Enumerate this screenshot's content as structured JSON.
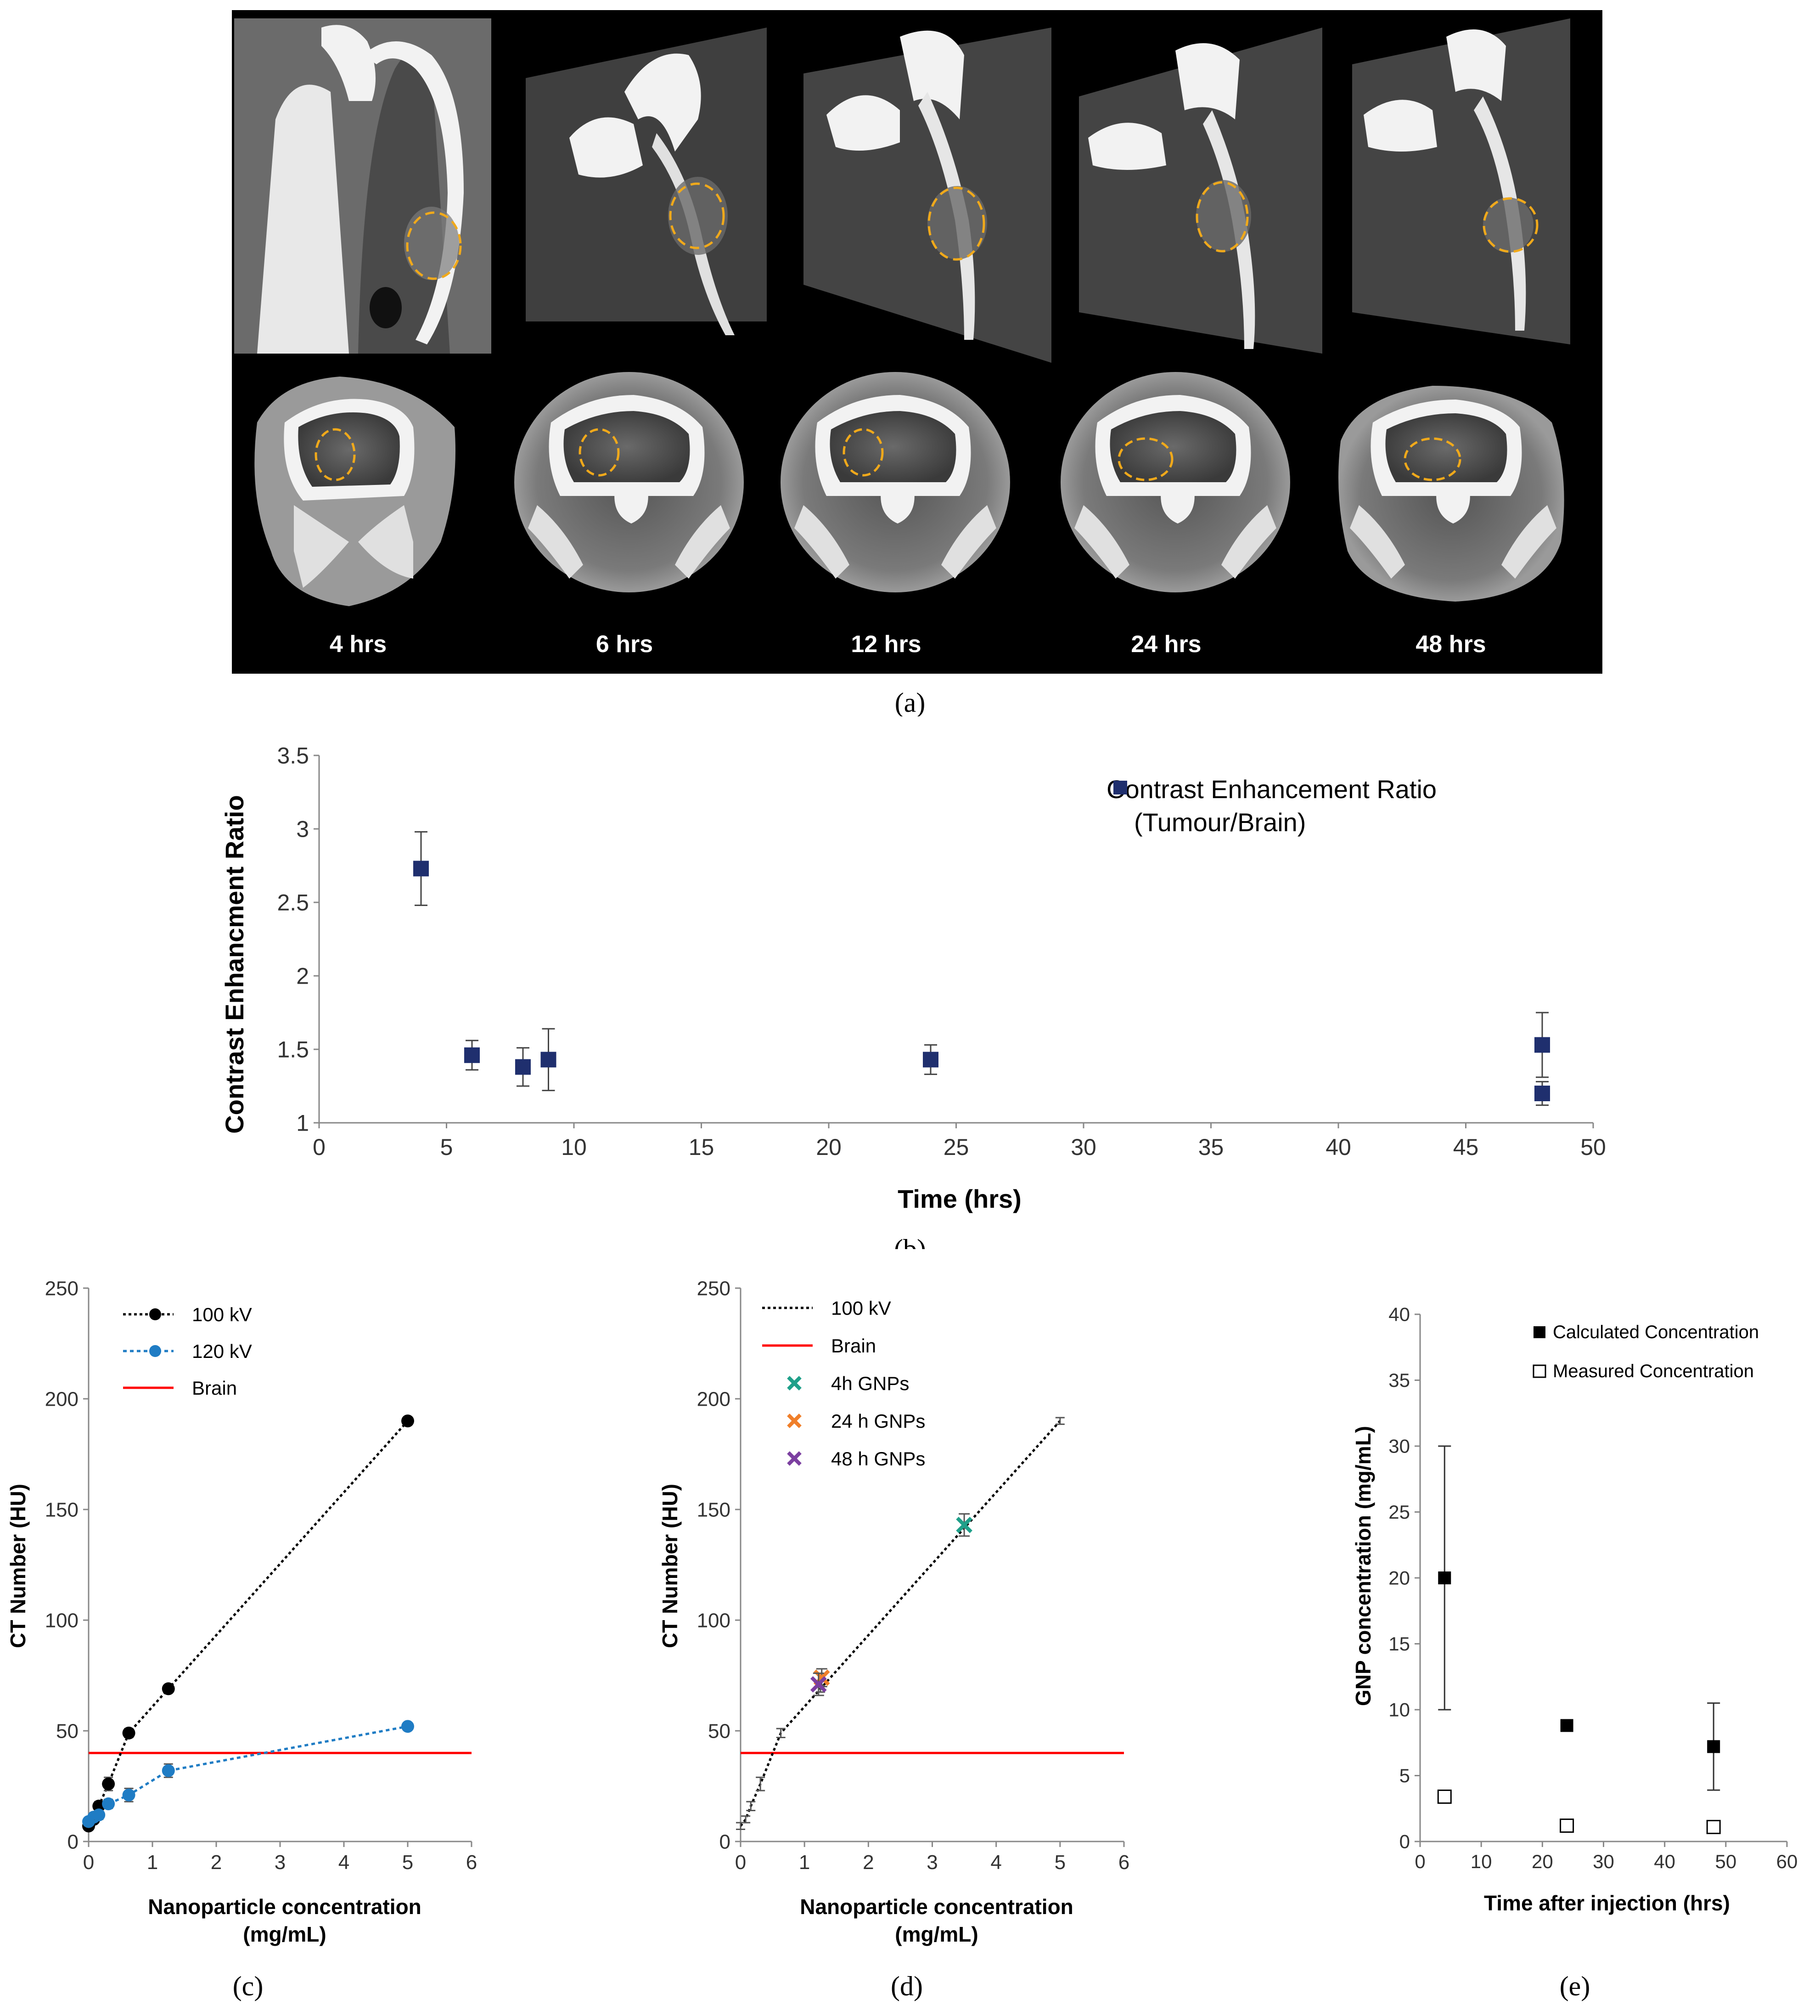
{
  "panel_a": {
    "caption": "(a)",
    "time_labels": [
      "4 hrs",
      "6 hrs",
      "12 hrs",
      "24 hrs",
      "48 hrs"
    ]
  },
  "colors": {
    "navy": "#1f2f6e",
    "red": "#ff0000",
    "blue": "#1f7cc4",
    "teal": "#1fa08a",
    "orange": "#f07f2a",
    "purple": "#7b3fa0",
    "roi": "#f0a91b"
  },
  "chart_data": [
    {
      "id": "b",
      "caption": "(b)",
      "type": "scatter",
      "xlabel": "Time (hrs)",
      "ylabel": "Contrast Enhancment Ratio",
      "xlim": [
        0,
        50
      ],
      "ylim": [
        1,
        3.5
      ],
      "xticks": [
        0,
        5,
        10,
        15,
        20,
        25,
        30,
        35,
        40,
        45,
        50
      ],
      "yticks": [
        1,
        1.5,
        2,
        2.5,
        3,
        3.5
      ],
      "legend": [
        "Contrast Enhancement Ratio",
        "(Tumour/Brain)"
      ],
      "legend_position": "top-right",
      "series": [
        {
          "name": "Contrast Enhancement Ratio (Tumour/Brain)",
          "x": [
            4,
            6,
            8,
            9,
            24,
            48,
            48
          ],
          "y": [
            2.73,
            1.46,
            1.38,
            1.43,
            1.43,
            1.53,
            1.2
          ],
          "err": [
            0.25,
            0.1,
            0.13,
            0.21,
            0.1,
            0.22,
            0.08
          ]
        }
      ]
    },
    {
      "id": "c",
      "caption": "(c)",
      "type": "line",
      "xlabel": [
        "Nanoparticle concentration",
        "(mg/mL)"
      ],
      "ylabel": "CT Number (HU)",
      "xlim": [
        0,
        6
      ],
      "ylim": [
        0,
        250
      ],
      "xticks": [
        0,
        1,
        2,
        3,
        4,
        5,
        6
      ],
      "yticks": [
        0,
        50,
        100,
        150,
        200,
        250
      ],
      "legend_position": "top-left",
      "series": [
        {
          "name": "100 kV",
          "x": [
            0,
            0.08,
            0.16,
            0.31,
            0.63,
            1.25,
            5
          ],
          "y": [
            7,
            10,
            16,
            26,
            49,
            69,
            190
          ],
          "err": [
            1.5,
            1.5,
            2,
            3,
            2,
            1.5,
            1.5
          ]
        },
        {
          "name": "120 kV",
          "x": [
            0,
            0.08,
            0.16,
            0.31,
            0.63,
            1.25,
            5
          ],
          "y": [
            9,
            11,
            12,
            17,
            21,
            32,
            52
          ],
          "err": [
            1.5,
            1.5,
            2,
            2,
            3,
            3,
            1.5
          ]
        }
      ],
      "reference_lines": [
        {
          "name": "Brain",
          "y": 40
        }
      ]
    },
    {
      "id": "d",
      "caption": "(d)",
      "type": "line",
      "xlabel": [
        "Nanoparticle concentration",
        "(mg/mL)"
      ],
      "ylabel": "CT Number (HU)",
      "xlim": [
        0,
        6
      ],
      "ylim": [
        0,
        250
      ],
      "xticks": [
        0,
        1,
        2,
        3,
        4,
        5,
        6
      ],
      "yticks": [
        0,
        50,
        100,
        150,
        200,
        250
      ],
      "legend_position": "top-left",
      "series": [
        {
          "name": "100 kV",
          "x": [
            0,
            0.08,
            0.16,
            0.31,
            0.63,
            1.25,
            5
          ],
          "y": [
            7,
            10,
            16,
            26,
            49,
            69,
            190
          ],
          "err": [
            1.5,
            1.5,
            2,
            3,
            2,
            1.5,
            1.5
          ]
        }
      ],
      "reference_lines": [
        {
          "name": "Brain",
          "y": 40
        }
      ],
      "markers": [
        {
          "name": "4h GNPs",
          "x": 3.5,
          "y": 143,
          "err": 5
        },
        {
          "name": "24 h GNPs",
          "x": 1.27,
          "y": 74,
          "err": 4
        },
        {
          "name": "48 h GNPs",
          "x": 1.22,
          "y": 71,
          "err": 5
        }
      ]
    },
    {
      "id": "e",
      "caption": "(e)",
      "type": "scatter",
      "xlabel": "Time after injection (hrs)",
      "ylabel": "GNP concentration (mg/mL)",
      "xlim": [
        0,
        60
      ],
      "ylim": [
        0,
        40
      ],
      "xticks": [
        0,
        10,
        20,
        30,
        40,
        50,
        60
      ],
      "yticks": [
        0,
        5,
        10,
        15,
        20,
        25,
        30,
        35,
        40
      ],
      "legend_position": "top-right",
      "series": [
        {
          "name": "Calculated Concentration",
          "x": [
            4,
            24,
            48
          ],
          "y": [
            20,
            8.8,
            7.2
          ],
          "err": [
            10,
            0,
            3.3
          ]
        },
        {
          "name": "Measured Concentration",
          "x": [
            4,
            24,
            48
          ],
          "y": [
            3.4,
            1.2,
            1.1
          ]
        }
      ]
    }
  ]
}
